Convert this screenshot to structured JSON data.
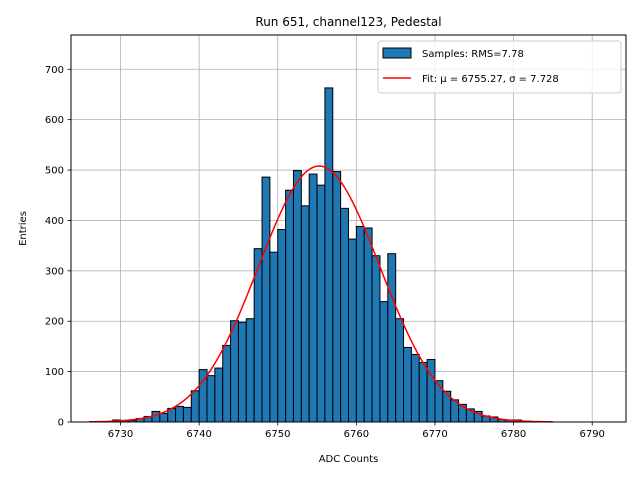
{
  "chart_data": {
    "type": "bar",
    "title": "Run 651, channel123, Pedestal",
    "xlabel": "ADC Counts",
    "ylabel": "Entries",
    "xlim": [
      6723.7,
      6794.3
    ],
    "ylim": [
      0,
      768
    ],
    "xticks": [
      6730,
      6740,
      6750,
      6760,
      6770,
      6780,
      6790
    ],
    "yticks": [
      0,
      100,
      200,
      300,
      400,
      500,
      600,
      700
    ],
    "grid": true,
    "legend_position": "top-right",
    "bin_width": 1,
    "bins": [
      6729,
      6730,
      6731,
      6732,
      6733,
      6734,
      6735,
      6736,
      6737,
      6738,
      6739,
      6740,
      6741,
      6742,
      6743,
      6744,
      6745,
      6746,
      6747,
      6748,
      6749,
      6750,
      6751,
      6752,
      6753,
      6754,
      6755,
      6756,
      6757,
      6758,
      6759,
      6760,
      6761,
      6762,
      6763,
      6764,
      6765,
      6766,
      6767,
      6768,
      6769,
      6770,
      6771,
      6772,
      6773,
      6774,
      6775,
      6776,
      6777,
      6778,
      6779,
      6780,
      6781
    ],
    "series": [
      {
        "name": "Samples: RMS=7.78",
        "kind": "histogram",
        "color": "#1f77b4",
        "edgecolor": "#000000",
        "values": [
          4,
          3,
          3,
          7,
          11,
          21,
          17,
          27,
          31,
          29,
          62,
          104,
          92,
          107,
          152,
          201,
          198,
          205,
          344,
          486,
          337,
          382,
          460,
          499,
          429,
          492,
          470,
          663,
          497,
          424,
          363,
          388,
          385,
          330,
          239,
          334,
          205,
          148,
          134,
          118,
          124,
          82,
          61,
          44,
          35,
          26,
          21,
          12,
          10,
          5,
          4,
          4,
          2
        ]
      },
      {
        "name": "Fit: μ = 6755.27, σ = 7.728",
        "kind": "gaussian",
        "color": "#ff0000",
        "mu": 6755.27,
        "sigma": 7.728,
        "amplitude": 508,
        "x_range": [
          6726,
          6785
        ]
      }
    ]
  }
}
